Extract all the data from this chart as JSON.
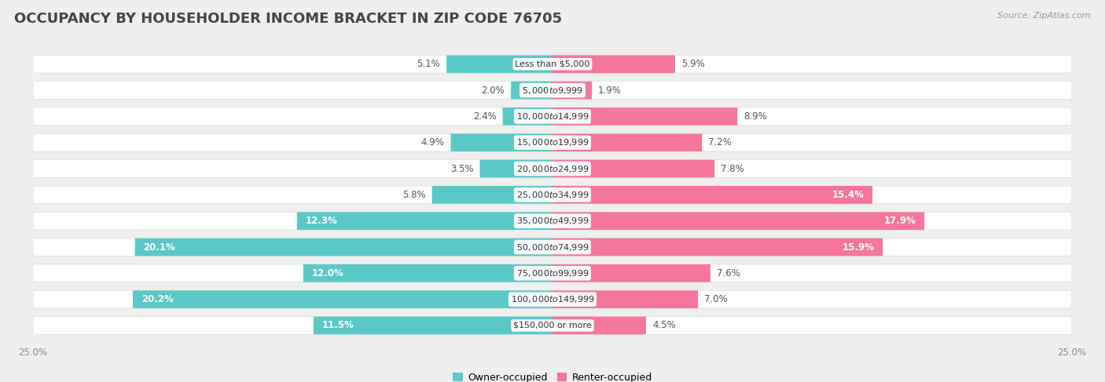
{
  "title": "OCCUPANCY BY HOUSEHOLDER INCOME BRACKET IN ZIP CODE 76705",
  "source": "Source: ZipAtlas.com",
  "categories": [
    "Less than $5,000",
    "$5,000 to $9,999",
    "$10,000 to $14,999",
    "$15,000 to $19,999",
    "$20,000 to $24,999",
    "$25,000 to $34,999",
    "$35,000 to $49,999",
    "$50,000 to $74,999",
    "$75,000 to $99,999",
    "$100,000 to $149,999",
    "$150,000 or more"
  ],
  "owner_values": [
    5.1,
    2.0,
    2.4,
    4.9,
    3.5,
    5.8,
    12.3,
    20.1,
    12.0,
    20.2,
    11.5
  ],
  "renter_values": [
    5.9,
    1.9,
    8.9,
    7.2,
    7.8,
    15.4,
    17.9,
    15.9,
    7.6,
    7.0,
    4.5
  ],
  "owner_color": "#5BC8C8",
  "renter_color": "#F4769A",
  "background_color": "#efefef",
  "bar_bg_color": "#ffffff",
  "xlim": 25.0,
  "title_fontsize": 13,
  "label_fontsize": 8.5,
  "cat_fontsize": 8.0,
  "legend_fontsize": 9,
  "source_fontsize": 8
}
